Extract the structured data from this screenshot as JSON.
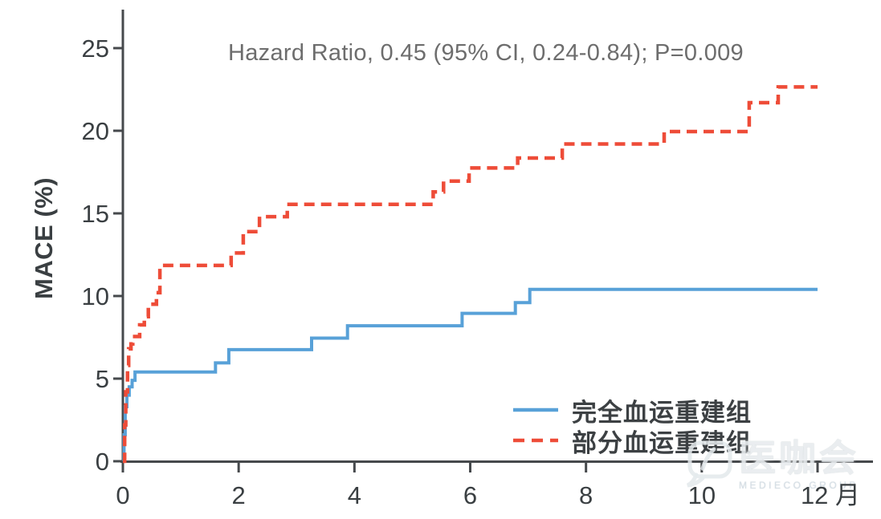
{
  "chart_data": {
    "type": "line",
    "subtype": "step-kaplan-meier",
    "title": "Hazard Ratio, 0.45 (95% CI, 0.24-0.84); P=0.009",
    "ylabel": "MACE (%)",
    "xlabel": "月",
    "xlim": [
      0,
      12
    ],
    "ylim": [
      0,
      25
    ],
    "x_ticks": [
      0,
      2,
      4,
      6,
      8,
      10,
      12
    ],
    "x_last_tick_label": "12 月",
    "y_ticks": [
      0,
      5,
      10,
      15,
      20,
      25
    ],
    "grid": false,
    "legend_position": "inside-lower-right",
    "axis_color": "#46494c",
    "series": [
      {
        "name": "完全血运重建组",
        "color": "#58a1d8",
        "style": "solid",
        "points": [
          [
            0,
            0
          ],
          [
            0.02,
            1.6
          ],
          [
            0.04,
            3.3
          ],
          [
            0.07,
            4.0
          ],
          [
            0.11,
            4.5
          ],
          [
            0.16,
            4.9
          ],
          [
            0.21,
            5.4
          ],
          [
            1.6,
            5.95
          ],
          [
            1.83,
            6.75
          ],
          [
            3.26,
            7.45
          ],
          [
            3.88,
            8.2
          ],
          [
            5.86,
            8.95
          ],
          [
            6.78,
            9.6
          ],
          [
            7.03,
            10.4
          ],
          [
            12,
            10.4
          ]
        ]
      },
      {
        "name": "部分血运重建组",
        "color": "#ee4c38",
        "style": "dashed",
        "points": [
          [
            0,
            0
          ],
          [
            0.03,
            2.2
          ],
          [
            0.05,
            4.2
          ],
          [
            0.08,
            5.8
          ],
          [
            0.1,
            6.8
          ],
          [
            0.14,
            7.1
          ],
          [
            0.17,
            7.55
          ],
          [
            0.29,
            8.25
          ],
          [
            0.37,
            8.75
          ],
          [
            0.44,
            9.5
          ],
          [
            0.58,
            10.2
          ],
          [
            0.64,
            11.85
          ],
          [
            1.87,
            12.6
          ],
          [
            2.08,
            13.9
          ],
          [
            2.36,
            14.8
          ],
          [
            2.84,
            15.55
          ],
          [
            5.36,
            16.3
          ],
          [
            5.54,
            16.95
          ],
          [
            5.98,
            17.75
          ],
          [
            6.82,
            18.35
          ],
          [
            7.59,
            19.2
          ],
          [
            9.35,
            19.95
          ],
          [
            10.82,
            21.7
          ],
          [
            11.32,
            22.65
          ],
          [
            12,
            22.65
          ]
        ]
      }
    ]
  },
  "watermark": {
    "text": "医咖会",
    "subtext": "MEDIECO GROUP"
  }
}
